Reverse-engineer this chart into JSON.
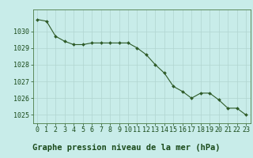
{
  "x": [
    0,
    1,
    2,
    3,
    4,
    5,
    6,
    7,
    8,
    9,
    10,
    11,
    12,
    13,
    14,
    15,
    16,
    17,
    18,
    19,
    20,
    21,
    22,
    23
  ],
  "y": [
    1030.7,
    1030.6,
    1029.7,
    1029.4,
    1029.2,
    1029.2,
    1029.3,
    1029.3,
    1029.3,
    1029.3,
    1029.3,
    1029.0,
    1028.6,
    1028.0,
    1027.5,
    1026.7,
    1026.4,
    1026.0,
    1026.3,
    1026.3,
    1025.9,
    1025.4,
    1025.4,
    1025.0
  ],
  "line_color": "#2d5a27",
  "marker": "D",
  "marker_size": 2.0,
  "line_width": 0.8,
  "bg_color": "#c8ece9",
  "grid_color": "#b0d4d0",
  "xlabel": "Graphe pression niveau de la mer (hPa)",
  "xlabel_fontsize": 7.5,
  "ylabel_ticks": [
    1025,
    1026,
    1027,
    1028,
    1029,
    1030
  ],
  "ylim": [
    1024.5,
    1031.3
  ],
  "xlim": [
    -0.5,
    23.5
  ],
  "tick_fontsize": 6.0,
  "tick_color": "#1a4a1a",
  "label_text_color": "#1a4a1a",
  "spine_color": "#4a7a44"
}
